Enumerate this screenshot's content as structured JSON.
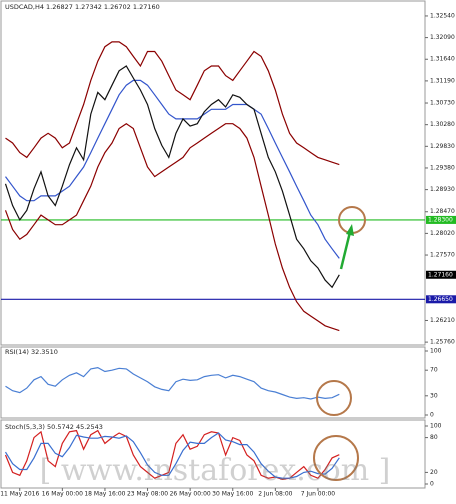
{
  "watermark": "[ www.instaforex.com ]",
  "chart_data": [
    {
      "type": "line",
      "title": "USDCAD,H4  1.26827 1.27342 1.26702 1.27160",
      "ylim": [
        1.257,
        1.3283
      ],
      "yticks": [
        {
          "value": 1.3254,
          "label": "1.32540"
        },
        {
          "value": 1.3209,
          "label": "1.32090"
        },
        {
          "value": 1.3164,
          "label": "1.31640"
        },
        {
          "value": 1.3119,
          "label": "1.31190"
        },
        {
          "value": 1.3073,
          "label": "1.30730"
        },
        {
          "value": 1.3028,
          "label": "1.30280"
        },
        {
          "value": 1.2983,
          "label": "1.29830"
        },
        {
          "value": 1.2938,
          "label": "1.29380"
        },
        {
          "value": 1.2893,
          "label": "1.28930"
        },
        {
          "value": 1.2847,
          "label": "1.28470"
        },
        {
          "value": 1.2802,
          "label": "1.28020"
        },
        {
          "value": 1.2757,
          "label": "1.27570"
        },
        {
          "value": 1.2621,
          "label": "1.26210"
        },
        {
          "value": 1.2576,
          "label": "1.25760"
        }
      ],
      "levels": [
        {
          "value": 1.283,
          "label": "1.28300",
          "color": "#22bb22"
        },
        {
          "value": 1.2665,
          "label": "1.26650",
          "color": "#1a1aa8"
        },
        {
          "value": 1.2716,
          "label": "1.27160",
          "color": "#000000"
        }
      ],
      "series": [
        {
          "color": "#8b0000",
          "values": [
            1.3,
            1.299,
            1.297,
            1.296,
            1.298,
            1.3,
            1.301,
            1.3,
            1.298,
            1.299,
            1.303,
            1.307,
            1.312,
            1.316,
            1.319,
            1.32,
            1.32,
            1.319,
            1.317,
            1.315,
            1.318,
            1.318,
            1.316,
            1.313,
            1.31,
            1.309,
            1.308,
            1.311,
            1.314,
            1.315,
            1.315,
            1.313,
            1.312,
            1.314,
            1.316,
            1.318,
            1.317,
            1.314,
            1.31,
            1.305,
            1.301,
            1.299,
            1.298,
            1.297,
            1.296,
            1.2955,
            1.295,
            1.2945
          ]
        },
        {
          "color": "#8b0000",
          "values": [
            1.285,
            1.281,
            1.279,
            1.28,
            1.282,
            1.284,
            1.283,
            1.282,
            1.282,
            1.283,
            1.284,
            1.287,
            1.29,
            1.294,
            1.297,
            1.299,
            1.302,
            1.303,
            1.302,
            1.298,
            1.294,
            1.292,
            1.293,
            1.294,
            1.295,
            1.296,
            1.298,
            1.299,
            1.3,
            1.301,
            1.302,
            1.303,
            1.303,
            1.302,
            1.3,
            1.296,
            1.29,
            1.284,
            1.278,
            1.273,
            1.269,
            1.266,
            1.264,
            1.263,
            1.262,
            1.261,
            1.2605,
            1.26
          ]
        },
        {
          "color": "#3355cc",
          "values": [
            1.292,
            1.29,
            1.288,
            1.287,
            1.287,
            1.288,
            1.288,
            1.288,
            1.289,
            1.29,
            1.292,
            1.294,
            1.297,
            1.3,
            1.303,
            1.306,
            1.309,
            1.311,
            1.312,
            1.312,
            1.311,
            1.309,
            1.307,
            1.305,
            1.304,
            1.304,
            1.304,
            1.304,
            1.305,
            1.306,
            1.306,
            1.306,
            1.307,
            1.307,
            1.307,
            1.306,
            1.305,
            1.302,
            1.299,
            1.296,
            1.293,
            1.29,
            1.287,
            1.284,
            1.282,
            1.279,
            1.277,
            1.275
          ]
        },
        {
          "color": "#111111",
          "values": [
            1.2905,
            1.286,
            1.283,
            1.285,
            1.2895,
            1.293,
            1.288,
            1.286,
            1.29,
            1.2945,
            1.298,
            1.2955,
            1.305,
            1.3095,
            1.308,
            1.311,
            1.314,
            1.315,
            1.3125,
            1.31,
            1.307,
            1.302,
            1.2985,
            1.296,
            1.301,
            1.304,
            1.3025,
            1.303,
            1.3055,
            1.307,
            1.308,
            1.3065,
            1.309,
            1.3085,
            1.307,
            1.306,
            1.301,
            1.296,
            1.293,
            1.289,
            1.284,
            1.279,
            1.277,
            1.2745,
            1.273,
            1.2705,
            1.269,
            1.2716
          ]
        }
      ]
    },
    {
      "type": "line",
      "title": "RSI(14) 32.3510",
      "ylim": [
        0,
        100
      ],
      "yticks": [
        100,
        70,
        30,
        0
      ],
      "series": [
        {
          "color": "#4a7fd4",
          "values": [
            45,
            38,
            35,
            42,
            55,
            60,
            48,
            45,
            55,
            62,
            66,
            60,
            72,
            74,
            68,
            70,
            73,
            72,
            64,
            58,
            52,
            44,
            40,
            38,
            52,
            56,
            54,
            55,
            60,
            62,
            63,
            58,
            62,
            60,
            56,
            52,
            42,
            38,
            36,
            32,
            28,
            26,
            27,
            25,
            28,
            26,
            27,
            32.351
          ]
        }
      ]
    },
    {
      "type": "line",
      "title": "Stoch(5,3,3) 50.5742 45.2543",
      "ylim": [
        0,
        100
      ],
      "yticks": [
        100,
        80,
        20,
        0
      ],
      "categories": [
        null,
        null,
        "11 May 2016",
        null,
        null,
        null,
        null,
        null,
        "16 May 00:00",
        null,
        null,
        null,
        null,
        null,
        "18 May 16:00",
        null,
        null,
        null,
        null,
        null,
        "23 May 08:00",
        null,
        null,
        null,
        null,
        null,
        "26 May 00:00",
        null,
        null,
        null,
        null,
        null,
        "30 May 16:00",
        null,
        null,
        null,
        null,
        null,
        "2 Jun 08:00",
        null,
        null,
        null,
        null,
        null,
        "7 Jun 00:00",
        null,
        null,
        null
      ],
      "series": [
        {
          "color": "#d42020",
          "values": [
            50,
            20,
            15,
            40,
            80,
            90,
            40,
            30,
            70,
            90,
            92,
            60,
            85,
            92,
            70,
            80,
            88,
            82,
            50,
            30,
            20,
            10,
            15,
            20,
            70,
            85,
            60,
            65,
            85,
            90,
            88,
            50,
            80,
            75,
            50,
            40,
            15,
            10,
            12,
            8,
            10,
            20,
            30,
            15,
            10,
            25,
            45,
            50.5742
          ]
        },
        {
          "color": "#3a6fd0",
          "values": [
            55,
            35,
            25,
            25,
            45,
            70,
            70,
            53,
            47,
            63,
            84,
            81,
            79,
            79,
            82,
            81,
            79,
            83,
            73,
            54,
            33,
            20,
            15,
            15,
            35,
            58,
            72,
            70,
            70,
            80,
            88,
            76,
            73,
            68,
            68,
            55,
            35,
            22,
            12,
            10,
            10,
            13,
            20,
            22,
            18,
            17,
            27,
            45.2543
          ]
        }
      ]
    }
  ]
}
